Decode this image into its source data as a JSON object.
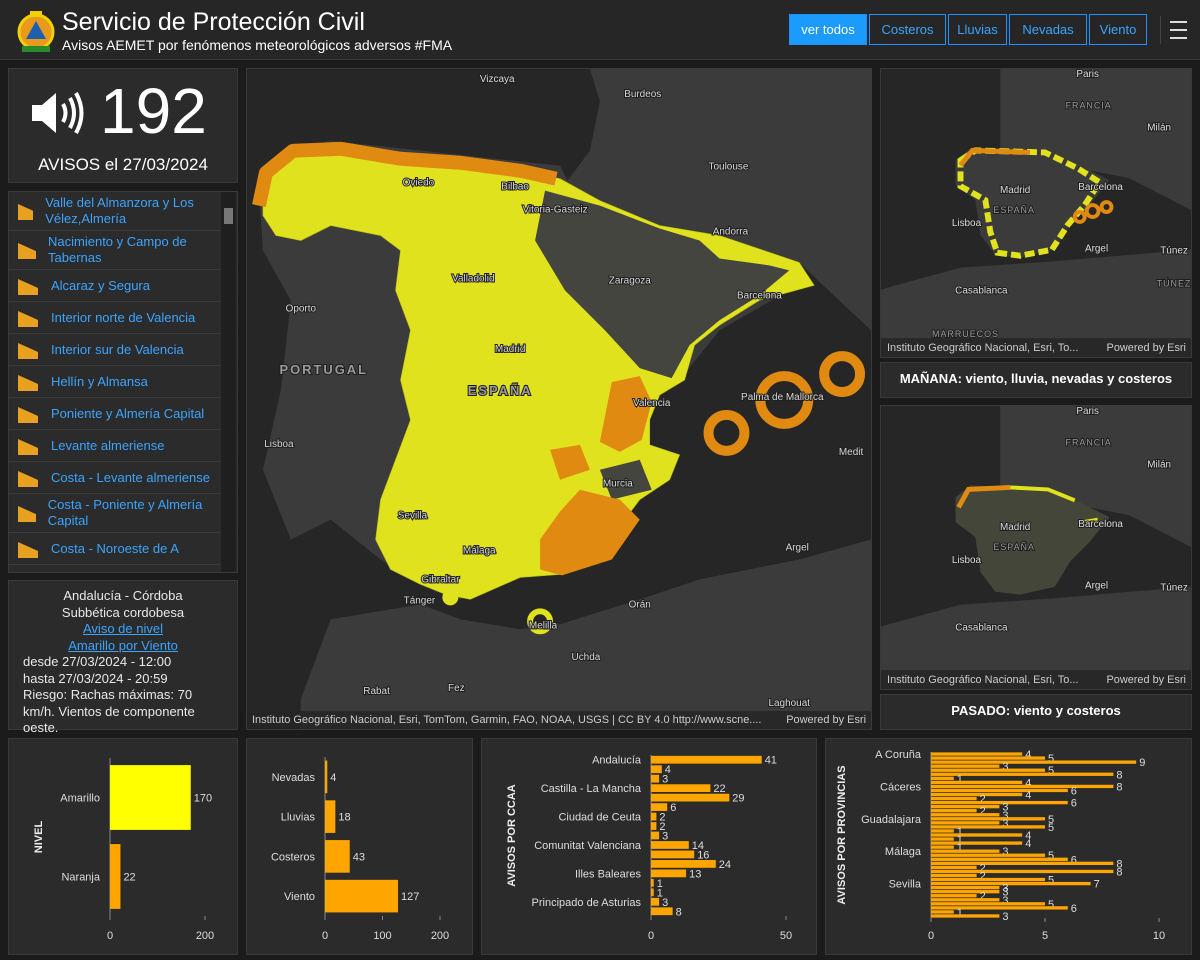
{
  "header": {
    "title": "Servicio de Protección Civil",
    "subtitle": "Avisos AEMET por fenómenos meteorológicos adversos #FMA",
    "filters": [
      "ver todos",
      "Costeros",
      "Lluvias",
      "Nevadas",
      "Viento"
    ]
  },
  "summary": {
    "count": 192,
    "label": "AVISOS el 27/03/2024"
  },
  "alerts": [
    "Valle del Almanzora y Los Vélez,Almería",
    "Nacimiento y Campo de Tabernas",
    "Alcaraz y Segura",
    "Interior norte de Valencia",
    "Interior sur de Valencia",
    "Hellín y Almansa",
    "Poniente y Almería Capital",
    "Levante almeriense",
    "Costa - Levante almeriense",
    "Costa - Poniente y Almería Capital",
    "Costa - Noroeste de A"
  ],
  "detail": {
    "region": "Andalucía - Córdoba",
    "zone": "Subbética cordobesa",
    "link": "Aviso de nivel Amarillo por Viento",
    "from": "desde 27/03/2024 - 12:00",
    "to": "hasta 27/03/2024 - 20:59",
    "risk": "Riesgo: Rachas máximas: 70 km/h. Vientos de componente oeste."
  },
  "map": {
    "labels": [
      "Vizcaya",
      "Burdeos",
      "Toulouse",
      "Oviedo",
      "Bilbao",
      "Vitoria-Gasteiz",
      "Andorra",
      "Valladolid",
      "Zaragoza",
      "Barcelona",
      "Oporto",
      "PORTUGAL",
      "Madrid",
      "ESPAÑA",
      "Valencia",
      "Palma de Mallorca",
      "Lisboa",
      "Murcia",
      "Sevilla",
      "Málaga",
      "Gibraltar",
      "Argel",
      "Tánger",
      "Orán",
      "Melilla",
      "Uchda",
      "Rabat",
      "Fez",
      "Laghouat",
      "Medit"
    ],
    "attribution": "Instituto Geográfico Nacional, Esri, TomTom, Garmin, FAO, NOAA, USGS | CC BY 4.0 http://www.scne....",
    "powered": "Powered by Esri"
  },
  "forecasts": [
    {
      "labels": [
        "Paris",
        "FRANCIA",
        "Milán",
        "Barcelona",
        "Madrid",
        "ESPAÑA",
        "Lisboa",
        "Argel",
        "Túnez",
        "Casablanca",
        "TÚNEZ",
        "MARRUECOS"
      ],
      "attribution": "Instituto Geográfico Nacional, Esri, To...",
      "powered": "Powered by Esri",
      "caption": "MAÑANA: viento, lluvia, nevadas y costeros"
    },
    {
      "labels": [
        "Paris",
        "FRANCIA",
        "Milán",
        "Barcelona",
        "Madrid",
        "ESPAÑA",
        "Lisboa",
        "Argel",
        "Túnez",
        "Casablanca"
      ],
      "attribution": "Instituto Geográfico Nacional, Esri, To...",
      "powered": "Powered by Esri",
      "caption": "PASADO: viento y costeros"
    }
  ],
  "chart_data": [
    {
      "type": "bar",
      "orientation": "horizontal",
      "axis_title": "NIVEL",
      "categories": [
        "Amarillo",
        "Naranja"
      ],
      "values": [
        170,
        22
      ],
      "colors": [
        "#ffff00",
        "#ffa500"
      ],
      "xlim": [
        0,
        200
      ],
      "xticks": [
        0,
        200
      ]
    },
    {
      "type": "bar",
      "orientation": "horizontal",
      "categories": [
        "Nevadas",
        "Lluvias",
        "Costeros",
        "Viento"
      ],
      "values": [
        4,
        18,
        43,
        127
      ],
      "color": "#ffa500",
      "xlim": [
        0,
        200
      ],
      "xticks": [
        0,
        100,
        200
      ]
    },
    {
      "type": "bar",
      "orientation": "horizontal",
      "axis_title": "AVISOS POR CCAA",
      "categories": [
        "Andalucía",
        null,
        null,
        "Castilla - La Mancha",
        null,
        null,
        "Ciudad de Ceuta",
        null,
        null,
        "Comunitat Valenciana",
        null,
        null,
        "Illes Baleares",
        null,
        null,
        "Principado de Asturias",
        null
      ],
      "values": [
        41,
        4,
        3,
        22,
        29,
        6,
        2,
        2,
        3,
        14,
        16,
        24,
        13,
        1,
        1,
        3,
        8
      ],
      "color": "#ffa500",
      "xlim": [
        0,
        50
      ],
      "xticks": [
        0,
        50
      ]
    },
    {
      "type": "bar",
      "orientation": "horizontal",
      "axis_title": "AVISOS POR PROVINCIAS",
      "categories": [
        "A Coruña",
        null,
        null,
        null,
        null,
        null,
        null,
        null,
        "Cáceres",
        null,
        null,
        null,
        null,
        null,
        null,
        null,
        "Guadalajara",
        null,
        null,
        null,
        null,
        null,
        null,
        null,
        "Málaga",
        null,
        null,
        null,
        null,
        null,
        null,
        null,
        "Sevilla",
        null,
        null,
        null,
        null,
        null,
        null,
        null,
        null
      ],
      "values": [
        4,
        5,
        9,
        3,
        5,
        8,
        1,
        4,
        8,
        6,
        4,
        2,
        6,
        3,
        2,
        3,
        5,
        3,
        5,
        1,
        4,
        1,
        4,
        1,
        3,
        5,
        6,
        8,
        2,
        8,
        2,
        5,
        7,
        3,
        3,
        2,
        3,
        5,
        6,
        1,
        3
      ],
      "color": "#ffa500",
      "xlim": [
        0,
        10
      ],
      "xticks": [
        0,
        5,
        10
      ]
    }
  ]
}
